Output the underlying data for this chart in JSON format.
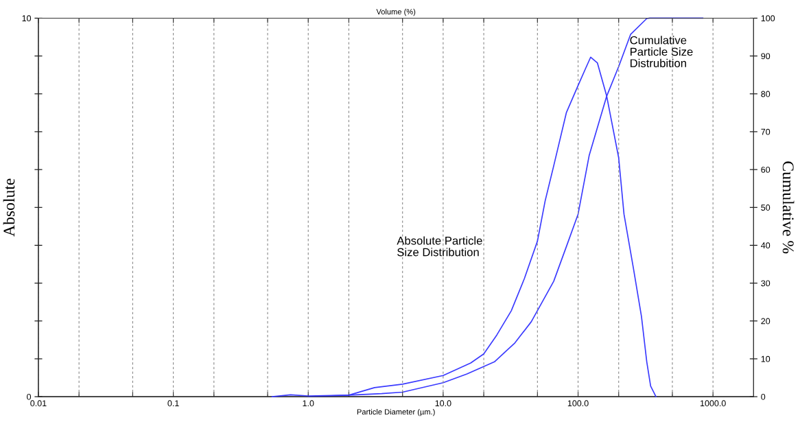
{
  "chart_data": {
    "type": "line",
    "title": "Volume (%)",
    "xlabel": "Particle Diameter (µm.)",
    "ylabel": "Absolute",
    "y2label": "Cumulative %",
    "log": "x",
    "grid": "x",
    "marker": "none",
    "line_style": "solid",
    "xlim": [
      0.01,
      2000
    ],
    "xticks": [
      {
        "value": 0.01,
        "label": "0.01"
      },
      {
        "value": 0.02,
        "label": null
      },
      {
        "value": 0.05,
        "label": null
      },
      {
        "value": 0.1,
        "label": "0.1"
      },
      {
        "value": 0.2,
        "label": null
      },
      {
        "value": 0.5,
        "label": null
      },
      {
        "value": 1,
        "label": "1.0"
      },
      {
        "value": 2,
        "label": null
      },
      {
        "value": 5,
        "label": null
      },
      {
        "value": 10,
        "label": "10.0"
      },
      {
        "value": 20,
        "label": null
      },
      {
        "value": 50,
        "label": null
      },
      {
        "value": 100,
        "label": "100.0"
      },
      {
        "value": 200,
        "label": null
      },
      {
        "value": 500,
        "label": null
      },
      {
        "value": 1000,
        "label": "1000.0"
      }
    ],
    "ylim": [
      0,
      10
    ],
    "yticks": [
      0,
      {
        "value": 1,
        "label": null
      },
      {
        "value": 2,
        "label": null
      },
      {
        "value": 3,
        "label": null
      },
      {
        "value": 4,
        "label": null
      },
      {
        "value": 5,
        "label": null
      },
      {
        "value": 6,
        "label": null
      },
      {
        "value": 7,
        "label": null
      },
      {
        "value": 8,
        "label": null
      },
      {
        "value": 9,
        "label": null
      },
      10
    ],
    "y2lim": [
      0,
      100
    ],
    "y2ticks": [
      0,
      10,
      20,
      30,
      40,
      50,
      60,
      70,
      80,
      90,
      100
    ],
    "series": [
      {
        "color": "#3a3aff",
        "x": [
          0.54,
          0.74,
          1.0,
          2.0,
          3.1,
          5.0,
          10,
          16,
          20,
          25,
          32,
          40,
          50,
          57,
          66,
          82,
          100,
          114,
          124,
          139,
          163,
          200,
          219,
          257,
          295,
          323,
          345,
          378
        ],
        "values": [
          0,
          0.05,
          0.02,
          0.04,
          0.24,
          0.33,
          0.56,
          0.89,
          1.13,
          1.63,
          2.27,
          3.12,
          4.11,
          5.17,
          6.1,
          7.51,
          8.22,
          8.68,
          8.97,
          8.82,
          7.94,
          6.31,
          4.82,
          3.4,
          2.12,
          0.92,
          0.28,
          0
        ]
      },
      {
        "color": "#3a3aff",
        "axis": "y2",
        "x": [
          1.0,
          2.0,
          3.5,
          5.0,
          10,
          15,
          24,
          34,
          45,
          66,
          82,
          100,
          121,
          163,
          200,
          245,
          323,
          340,
          840
        ],
        "values": [
          0,
          0.4,
          0.8,
          1.2,
          3.7,
          6.0,
          9.2,
          14.2,
          19.8,
          30.5,
          39.7,
          48.2,
          63.8,
          79.4,
          87.2,
          95.7,
          99.9,
          100,
          100
        ]
      }
    ],
    "annotations": [
      "Absolute Particle\nSize Distribution",
      "Cumulative\nParticle Size\nDistrubition"
    ]
  }
}
